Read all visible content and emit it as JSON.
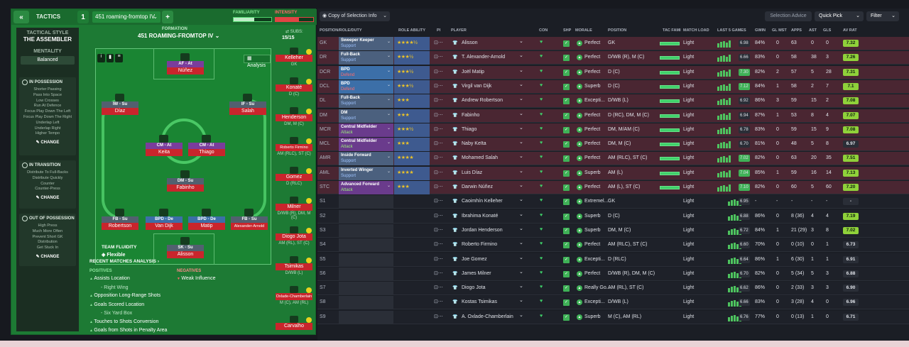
{
  "header": {
    "back_icon": "double-chevron-left-icon",
    "tactics_label": "TACTICS",
    "slot_number": "1",
    "tactic_name": "451 roaming-fromtop IV",
    "add_label": "+",
    "familiarity_label": "FAMILIARITY",
    "intensity_label": "INTENSITY",
    "familiarity": 0.55,
    "intensity": 0.62
  },
  "left_column": {
    "tactical_style_label": "TACTICAL STYLE",
    "style_name": "THE ASSEMBLER",
    "mentality_label": "MENTALITY",
    "mentality_value": "Balanced",
    "in_possession": {
      "title": "IN POSSESSION",
      "items": [
        "Shorter Passing",
        "Pass Into Space",
        "Low Crosses",
        "Run At Defence",
        "Focus Play Down The Left",
        "Focus Play Down The Right",
        "Underlap Left",
        "Underlap Right",
        "Higher Tempo"
      ],
      "change_label": "CHANGE"
    },
    "in_transition": {
      "title": "IN TRANSITION",
      "items": [
        "Distribute To Full-Backs",
        "Distribute Quickly",
        "Counter",
        "Counter-Press"
      ],
      "change_label": "CHANGE"
    },
    "out_of_possession": {
      "title": "OUT OF POSSESSION",
      "items": [
        "High Press",
        "Much More Often",
        "Prevent Short GK",
        "Distribution",
        "Get Stuck In"
      ],
      "change_label": "CHANGE"
    }
  },
  "formation": {
    "label": "FORMATION",
    "name": "451 ROAMING-FROMTOP IV",
    "analysis_label": "Analysis",
    "subs_label": "SUBS:",
    "subs_value": "15/15",
    "fluidity_label": "TEAM FLUIDITY",
    "fluidity_value": "Flexible",
    "players": [
      {
        "role": "AF - At",
        "name": "Núñez"
      },
      {
        "role": "IW - Su",
        "name": "Díaz"
      },
      {
        "role": "IF - Su",
        "name": "Salah"
      },
      {
        "role": "CM - At",
        "name": "Keita"
      },
      {
        "role": "CM - At",
        "name": "Thiago"
      },
      {
        "role": "DM - Su",
        "name": "Fabinho"
      },
      {
        "role": "FB - Su",
        "name": "Robertson"
      },
      {
        "role": "BPD - De",
        "name": "Van Dijk"
      },
      {
        "role": "BPD - De",
        "name": "Matip"
      },
      {
        "role": "FB - Su",
        "name": "Alexander-Arnold"
      },
      {
        "role": "SK - Su",
        "name": "Alisson"
      }
    ],
    "subs": [
      {
        "name": "Kelleher",
        "pos": "GK"
      },
      {
        "name": "Konaté",
        "pos": "D (C)"
      },
      {
        "name": "Henderson",
        "pos": "DM, M (C)"
      },
      {
        "name": "Roberto Firmino",
        "pos": "AM (RLC), ST (C)"
      },
      {
        "name": "Gomez",
        "pos": "D (RLC)"
      },
      {
        "name": "Milner",
        "pos": "D/WB (R), DM, M (C)"
      },
      {
        "name": "Diogo Jota",
        "pos": "AM (RL), ST (C)"
      },
      {
        "name": "Tsimikas",
        "pos": "D/WB (L)"
      },
      {
        "name": "Oxlade-Chamberlain",
        "pos": "M (C), AM (RL)"
      },
      {
        "name": "Carvalho",
        "pos": ""
      }
    ]
  },
  "analysis": {
    "title": "RECENT MATCHES ANALYSIS",
    "positives_label": "POSITIVES",
    "negatives_label": "NEGATIVES",
    "positives": [
      "Assists Location",
      "- Right Wing",
      "Opposition Long-Range Shots",
      "Goals Scored Location",
      "- Six Yard Box",
      "Touches to Shots Conversion",
      "Goals from Shots in Penalty Area"
    ],
    "negatives": [
      "Weak Influence"
    ]
  },
  "toolbar": {
    "view_label": "Copy of Selection Info",
    "selection_advice": "Selection Advice",
    "quick_pick": "Quick Pick",
    "filter": "Filter"
  },
  "table_headers": [
    "POSITION/ROLE/DUTY",
    "ROLE ABILITY",
    "PI",
    "PLAYER",
    "CON",
    "SHP",
    "MORALE",
    "POSITION",
    "TAC FAMI",
    "MATCH LOAD",
    "LAST 5 GAMES",
    "GWIN",
    "GL MST",
    "APPS",
    "AST",
    "GLS",
    "AV RAT"
  ],
  "rows": [
    {
      "slot": "GK",
      "role": "Sweeper Keeper",
      "duty": "Support",
      "stars": "★★★★½",
      "player": "Alisson",
      "morale": "Perfect",
      "position": "GK",
      "load": "Light",
      "form_rating": "6.98",
      "gwin": "84%",
      "glmst": "0",
      "apps": "63",
      "ast": "0",
      "gls": "0",
      "avrat": "7.32"
    },
    {
      "slot": "DR",
      "role": "Full-Back",
      "duty": "Support",
      "stars": "★★★½",
      "player": "T. Alexander-Arnold",
      "morale": "Perfect",
      "position": "D/WB (R), M (C)",
      "load": "Light",
      "form_rating": "6.66",
      "gwin": "83%",
      "glmst": "0",
      "apps": "58",
      "ast": "38",
      "gls": "3",
      "avrat": "7.26"
    },
    {
      "slot": "DCR",
      "role": "BPD",
      "duty": "Defend",
      "stars": "★★★½",
      "player": "Joël Matip",
      "morale": "Perfect",
      "position": "D (C)",
      "load": "Light",
      "form_rating": "7.30",
      "gwin": "82%",
      "glmst": "2",
      "apps": "57",
      "ast": "5",
      "gls": "28",
      "avrat": "7.31"
    },
    {
      "slot": "DCL",
      "role": "BPD",
      "duty": "Defend",
      "stars": "★★★½",
      "player": "Virgil van Dijk",
      "morale": "Superb",
      "position": "D (C)",
      "load": "Light",
      "form_rating": "7.12",
      "gwin": "84%",
      "glmst": "1",
      "apps": "58",
      "ast": "2",
      "gls": "7",
      "avrat": "7.1"
    },
    {
      "slot": "DL",
      "role": "Full-Back",
      "duty": "Support",
      "stars": "★★★",
      "player": "Andrew Robertson",
      "morale": "Excepti...",
      "position": "D/WB (L)",
      "load": "Light",
      "form_rating": "6.92",
      "gwin": "86%",
      "glmst": "3",
      "apps": "59",
      "ast": "15",
      "gls": "2",
      "avrat": "7.08"
    },
    {
      "slot": "DM",
      "role": "DM",
      "duty": "Support",
      "stars": "★★★",
      "player": "Fabinho",
      "morale": "Perfect",
      "position": "D (RC), DM, M (C)",
      "load": "Light",
      "form_rating": "6.94",
      "gwin": "87%",
      "glmst": "1",
      "apps": "53",
      "ast": "8",
      "gls": "4",
      "avrat": "7.07"
    },
    {
      "slot": "MCR",
      "role": "Central Midfielder",
      "duty": "Attack",
      "stars": "★★★½",
      "player": "Thiago",
      "morale": "Perfect",
      "position": "DM, M/AM (C)",
      "load": "Light",
      "form_rating": "6.78",
      "gwin": "83%",
      "glmst": "0",
      "apps": "59",
      "ast": "15",
      "gls": "9",
      "avrat": "7.08"
    },
    {
      "slot": "MCL",
      "role": "Central Midfielder",
      "duty": "Attack",
      "stars": "★★★",
      "player": "Naby Keïta",
      "morale": "Perfect",
      "position": "DM, M (C)",
      "load": "Light",
      "form_rating": "6.70",
      "gwin": "81%",
      "glmst": "0",
      "apps": "48",
      "ast": "5",
      "gls": "8",
      "avrat": "6.97"
    },
    {
      "slot": "AMR",
      "role": "Inside Forward",
      "duty": "Support",
      "stars": "★★★★",
      "player": "Mohamed Salah",
      "morale": "Perfect",
      "position": "AM (RLC), ST (C)",
      "load": "Light",
      "form_rating": "7.02",
      "gwin": "82%",
      "glmst": "0",
      "apps": "63",
      "ast": "20",
      "gls": "35",
      "avrat": "7.51"
    },
    {
      "slot": "AML",
      "role": "Inverted Winger",
      "duty": "Support",
      "stars": "★★★★",
      "player": "Luis Díaz",
      "morale": "Superb",
      "position": "AM (L)",
      "load": "Light",
      "form_rating": "7.04",
      "gwin": "85%",
      "glmst": "1",
      "apps": "59",
      "ast": "16",
      "gls": "14",
      "avrat": "7.13"
    },
    {
      "slot": "STC",
      "role": "Advanced Forward",
      "duty": "Attack",
      "stars": "★★★",
      "player": "Darwin Núñez",
      "morale": "Perfect",
      "position": "AM (L), ST (C)",
      "load": "Light",
      "form_rating": "7.10",
      "gwin": "82%",
      "glmst": "0",
      "apps": "60",
      "ast": "5",
      "gls": "60",
      "avrat": "7.20"
    },
    {
      "slot": "S1",
      "player": "Caoimhín Kelleher",
      "morale": "Extremel...",
      "position": "GK",
      "load": "Light",
      "form_rating": "6.95",
      "gwin": "-",
      "glmst": "-",
      "apps": "-",
      "ast": "-",
      "gls": "-",
      "avrat": "-"
    },
    {
      "slot": "S2",
      "player": "Ibrahima Konaté",
      "morale": "Superb",
      "position": "D (C)",
      "load": "Light",
      "form_rating": "6.88",
      "gwin": "86%",
      "glmst": "0",
      "apps": "8 (36)",
      "ast": "4",
      "gls": "4",
      "avrat": "7.19"
    },
    {
      "slot": "S3",
      "player": "Jordan Henderson",
      "morale": "Superb",
      "position": "DM, M (C)",
      "load": "Light",
      "form_rating": "6.72",
      "gwin": "84%",
      "glmst": "1",
      "apps": "21 (29)",
      "ast": "3",
      "gls": "8",
      "avrat": "7.02"
    },
    {
      "slot": "S4",
      "player": "Roberto Firmino",
      "morale": "Perfect",
      "position": "AM (RLC), ST (C)",
      "load": "Light",
      "form_rating": "6.60",
      "gwin": "70%",
      "glmst": "0",
      "apps": "0 (10)",
      "ast": "0",
      "gls": "1",
      "avrat": "6.73"
    },
    {
      "slot": "S5",
      "player": "Joe Gomez",
      "morale": "Excepti...",
      "position": "D (RLC)",
      "load": "Light",
      "form_rating": "6.64",
      "gwin": "86%",
      "glmst": "1",
      "apps": "6 (30)",
      "ast": "1",
      "gls": "1",
      "avrat": "6.91"
    },
    {
      "slot": "S6",
      "player": "James Milner",
      "morale": "Perfect",
      "position": "D/WB (R), DM, M (C)",
      "load": "Light",
      "form_rating": "6.70",
      "gwin": "82%",
      "glmst": "0",
      "apps": "5 (34)",
      "ast": "5",
      "gls": "3",
      "avrat": "6.88"
    },
    {
      "slot": "S7",
      "player": "Diogo Jota",
      "morale": "Really Go...",
      "position": "AM (RL), ST (C)",
      "load": "Light",
      "form_rating": "6.62",
      "gwin": "86%",
      "glmst": "0",
      "apps": "2 (33)",
      "ast": "3",
      "gls": "3",
      "avrat": "6.90"
    },
    {
      "slot": "S8",
      "player": "Kostas Tsimikas",
      "morale": "Excepti...",
      "position": "D/WB (L)",
      "load": "Light",
      "form_rating": "6.66",
      "gwin": "83%",
      "glmst": "0",
      "apps": "3 (28)",
      "ast": "4",
      "gls": "0",
      "avrat": "6.96"
    },
    {
      "slot": "S9",
      "player": "A. Oxlade-Chamberlain",
      "morale": "Superb",
      "position": "M (C), AM (RL)",
      "load": "Light",
      "form_rating": "6.76",
      "gwin": "77%",
      "glmst": "0",
      "apps": "0 (13)",
      "ast": "1",
      "gls": "0",
      "avrat": "6.71"
    }
  ],
  "colors": {
    "pitch": "#1a8533",
    "accent_red": "#c9252c",
    "defend": "#3c6fa8",
    "support": "#5c6b7e",
    "attack": "#7a3d9c",
    "green": "#4ec45f"
  }
}
